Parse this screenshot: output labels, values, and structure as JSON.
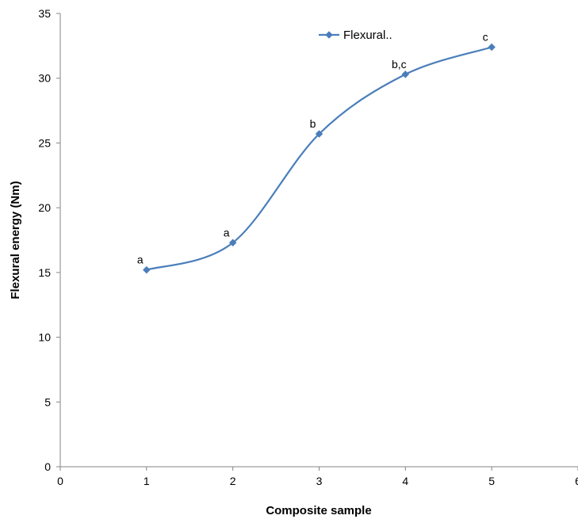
{
  "chart_data": {
    "type": "line",
    "title": "",
    "xlabel": "Composite sample",
    "ylabel": "Flexural energy (Nm)",
    "xlim": [
      0,
      6
    ],
    "ylim": [
      0,
      35
    ],
    "xticks": [
      0,
      1,
      2,
      3,
      4,
      5,
      6
    ],
    "yticks": [
      0,
      5,
      10,
      15,
      20,
      25,
      30,
      35
    ],
    "grid": false,
    "smooth": true,
    "legend": {
      "position": "top-center",
      "label": "Flexural.."
    },
    "series": [
      {
        "name": "Flexural..",
        "color": "#4a7ebb",
        "marker": "diamond",
        "x": [
          1,
          2,
          3,
          4,
          5
        ],
        "y": [
          15.2,
          17.3,
          25.7,
          30.3,
          32.4
        ],
        "labels": [
          "a",
          "a",
          "b",
          "b,c",
          "c"
        ]
      }
    ]
  }
}
